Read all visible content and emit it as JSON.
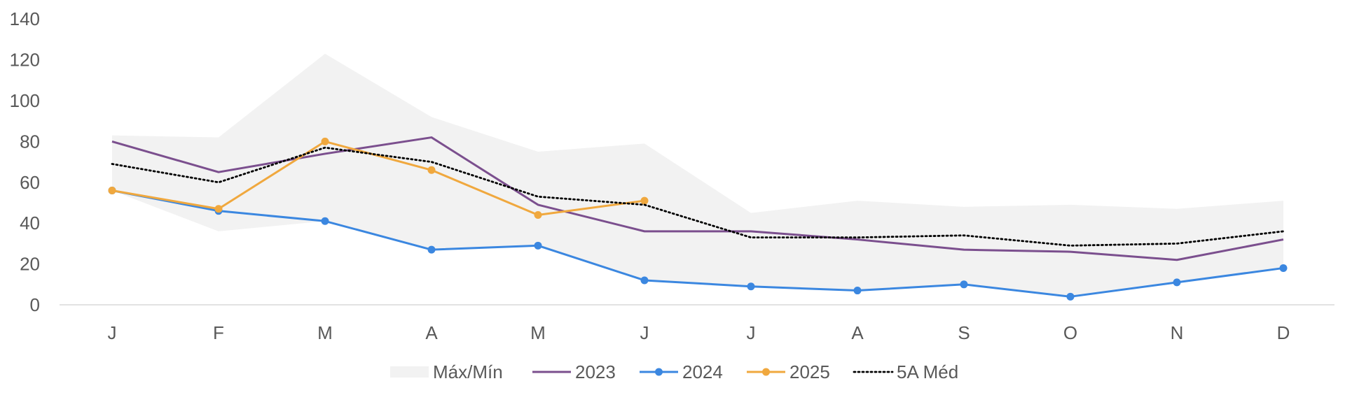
{
  "chart_data": {
    "type": "line",
    "categories": [
      "J",
      "F",
      "M",
      "A",
      "M",
      "J",
      "J",
      "A",
      "S",
      "O",
      "N",
      "D"
    ],
    "ylim": [
      0,
      140
    ],
    "yticks": [
      0,
      20,
      40,
      60,
      80,
      100,
      120,
      140
    ],
    "grid": false,
    "legend_position": "bottom",
    "band": {
      "name": "Máx/Mín",
      "color": "#f2f2f2",
      "max": [
        83,
        82,
        123,
        92,
        75,
        79,
        45,
        51,
        48,
        49,
        47,
        51
      ],
      "min": [
        56,
        36,
        41,
        27,
        29,
        12,
        9,
        7,
        10,
        4,
        11,
        18
      ]
    },
    "series": [
      {
        "name": "2023",
        "color": "#7b4f8e",
        "style": "solid",
        "markers": false,
        "values": [
          80,
          65,
          74,
          82,
          49,
          36,
          36,
          32,
          27,
          26,
          22,
          32
        ]
      },
      {
        "name": "2024",
        "color": "#3b87e0",
        "style": "solid",
        "markers": true,
        "values": [
          56,
          46,
          41,
          27,
          29,
          12,
          9,
          7,
          10,
          4,
          11,
          18
        ]
      },
      {
        "name": "2025",
        "color": "#f0a83e",
        "style": "solid",
        "markers": true,
        "values": [
          56,
          47,
          80,
          66,
          44,
          51,
          null,
          null,
          null,
          null,
          null,
          null
        ]
      },
      {
        "name": "5A Méd",
        "color": "#000000",
        "style": "dotted",
        "markers": false,
        "values": [
          69,
          60,
          77,
          70,
          53,
          49,
          33,
          33,
          34,
          29,
          30,
          36
        ]
      }
    ]
  }
}
